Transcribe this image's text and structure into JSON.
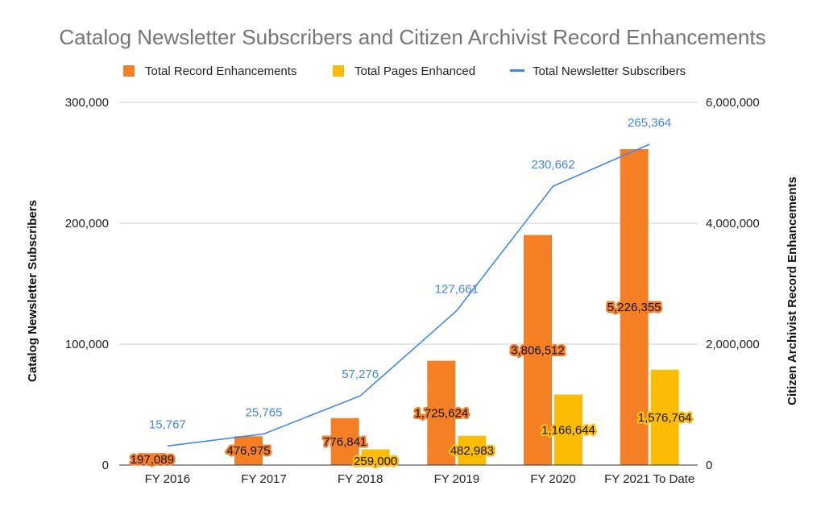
{
  "chart_data": {
    "type": "bar",
    "title": "Catalog Newsletter Subscribers and Citizen Archivist Record Enhancements",
    "categories": [
      "FY 2016",
      "FY 2017",
      "FY 2018",
      "FY 2019",
      "FY 2020",
      "FY 2021 To Date"
    ],
    "series": [
      {
        "name": "Total Record Enhancements",
        "type": "bar",
        "axis": "right",
        "color": "#f57f24",
        "values": [
          197089,
          476975,
          776841,
          1725624,
          3806512,
          5226355
        ],
        "labels": [
          "197,089",
          "476,975",
          "776,841",
          "1,725,624",
          "3,806,512",
          "5,226,355"
        ]
      },
      {
        "name": "Total Pages Enhanced",
        "type": "bar",
        "axis": "right",
        "color": "#fbbc04",
        "values": [
          null,
          null,
          259000,
          482983,
          1166644,
          1576764
        ],
        "labels": [
          "",
          "",
          "259,000",
          "482,983",
          "1,166,644",
          "1,576,764"
        ]
      },
      {
        "name": "Total Newsletter Subscribers",
        "type": "line",
        "axis": "left",
        "color": "#4285f4",
        "values": [
          15767,
          25765,
          57276,
          127661,
          230662,
          265364
        ],
        "labels": [
          "15,767",
          "25,765",
          "57,276",
          "127,661",
          "230,662",
          "265,364"
        ]
      }
    ],
    "left_axis": {
      "label": "Catalog Newsletter Subscribers",
      "range": [
        0,
        300000
      ],
      "ticks": [
        0,
        100000,
        200000,
        300000
      ],
      "tick_labels": [
        "0",
        "100,000",
        "200,000",
        "300,000"
      ]
    },
    "right_axis": {
      "label": "Citizen Archivist Record Enhancements",
      "range": [
        0,
        6000000
      ],
      "ticks": [
        0,
        2000000,
        4000000,
        6000000
      ],
      "tick_labels": [
        "0",
        "2,000,000",
        "4,000,000",
        "6,000,000"
      ]
    },
    "legend_position": "top",
    "grid": true
  }
}
